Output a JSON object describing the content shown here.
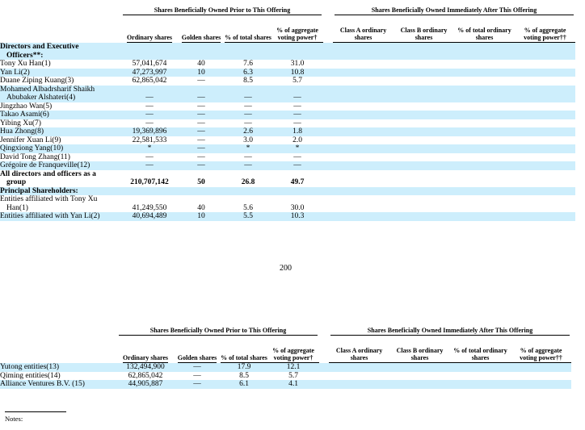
{
  "tables": [
    {
      "groups": [
        "Shares Beneficially Owned Prior to This Offering",
        "Shares Beneficially Owned Immediately After This Offering"
      ],
      "columns": [
        "Ordinary shares",
        "Golden shares",
        "% of total shares",
        "% of aggregate voting power†",
        "Class A ordinary shares",
        "Class B ordinary shares",
        "% of total ordinary shares",
        "% of aggregate voting power††"
      ],
      "rows": [
        {
          "section": "Directors and Executive Officers**:"
        },
        {
          "name": "Tony Xu Han(1)",
          "values": [
            "57,041,674",
            "40",
            "7.6",
            "31.0"
          ]
        },
        {
          "name": "Yan Li(2)",
          "values": [
            "47,273,997",
            "10",
            "6.3",
            "10.8"
          ]
        },
        {
          "name": "Duane Ziping Kuang(3)",
          "values": [
            "62,865,042",
            "—",
            "8.5",
            "5.7"
          ]
        },
        {
          "name": "Mohamed Albadrsharif Shaikh Abubaker Alshateri(4)",
          "values": [
            "—",
            "—",
            "—",
            "—"
          ]
        },
        {
          "name": "Jingzhao Wan(5)",
          "values": [
            "—",
            "—",
            "—",
            "—"
          ]
        },
        {
          "name": "Takao Asami(6)",
          "values": [
            "—",
            "—",
            "—",
            "—"
          ]
        },
        {
          "name": "Yibing Xu(7)",
          "values": [
            "—",
            "—",
            "—",
            "—"
          ]
        },
        {
          "name": "Hua Zhong(8)",
          "values": [
            "19,369,896",
            "—",
            "2.6",
            "1.8"
          ]
        },
        {
          "name": "Jennifer Xuan Li(9)",
          "values": [
            "22,581,533",
            "—",
            "3.0",
            "2.0"
          ]
        },
        {
          "name": "Qingxiong Yang(10)",
          "values": [
            "*",
            "—",
            "*",
            "*"
          ]
        },
        {
          "name": "David Tong Zhang(11)",
          "values": [
            "—",
            "—",
            "—",
            "—"
          ]
        },
        {
          "name": "Grégoire de Franqueville(12)",
          "values": [
            "—",
            "—",
            "—",
            "—"
          ]
        },
        {
          "name": "All directors and officers as a group",
          "values": [
            "210,707,142",
            "50",
            "26.8",
            "49.7"
          ],
          "bold": true
        },
        {
          "section": "Principal Shareholders:"
        },
        {
          "name": "Entities affiliated with Tony Xu Han(1)",
          "values": [
            "41,249,550",
            "40",
            "5.6",
            "30.0"
          ]
        },
        {
          "name": "Entities affiliated with Yan Li(2)",
          "values": [
            "40,694,489",
            "10",
            "5.5",
            "10.3"
          ]
        }
      ]
    },
    {
      "groups": [
        "Shares Beneficially Owned Prior to This Offering",
        "Shares Beneficially Owned Immediately After This Offering"
      ],
      "columns": [
        "Ordinary shares",
        "Golden shares",
        "% of total shares",
        "% of aggregate voting power†",
        "Class A ordinary shares",
        "Class B ordinary shares",
        "% of total ordinary shares",
        "% of aggregate voting power††"
      ],
      "rows": [
        {
          "name": "Yutong entities(13)",
          "values": [
            "132,494,900",
            "—",
            "17.9",
            "12.1"
          ]
        },
        {
          "name": "Qiming entities(14)",
          "values": [
            "62,865,042",
            "—",
            "8.5",
            "5.7"
          ]
        },
        {
          "name": "Alliance Ventures B.V. (15)",
          "values": [
            "44,905,887",
            "—",
            "6.1",
            "4.1"
          ]
        }
      ]
    }
  ],
  "page_number": "200",
  "notes": "Notes:"
}
